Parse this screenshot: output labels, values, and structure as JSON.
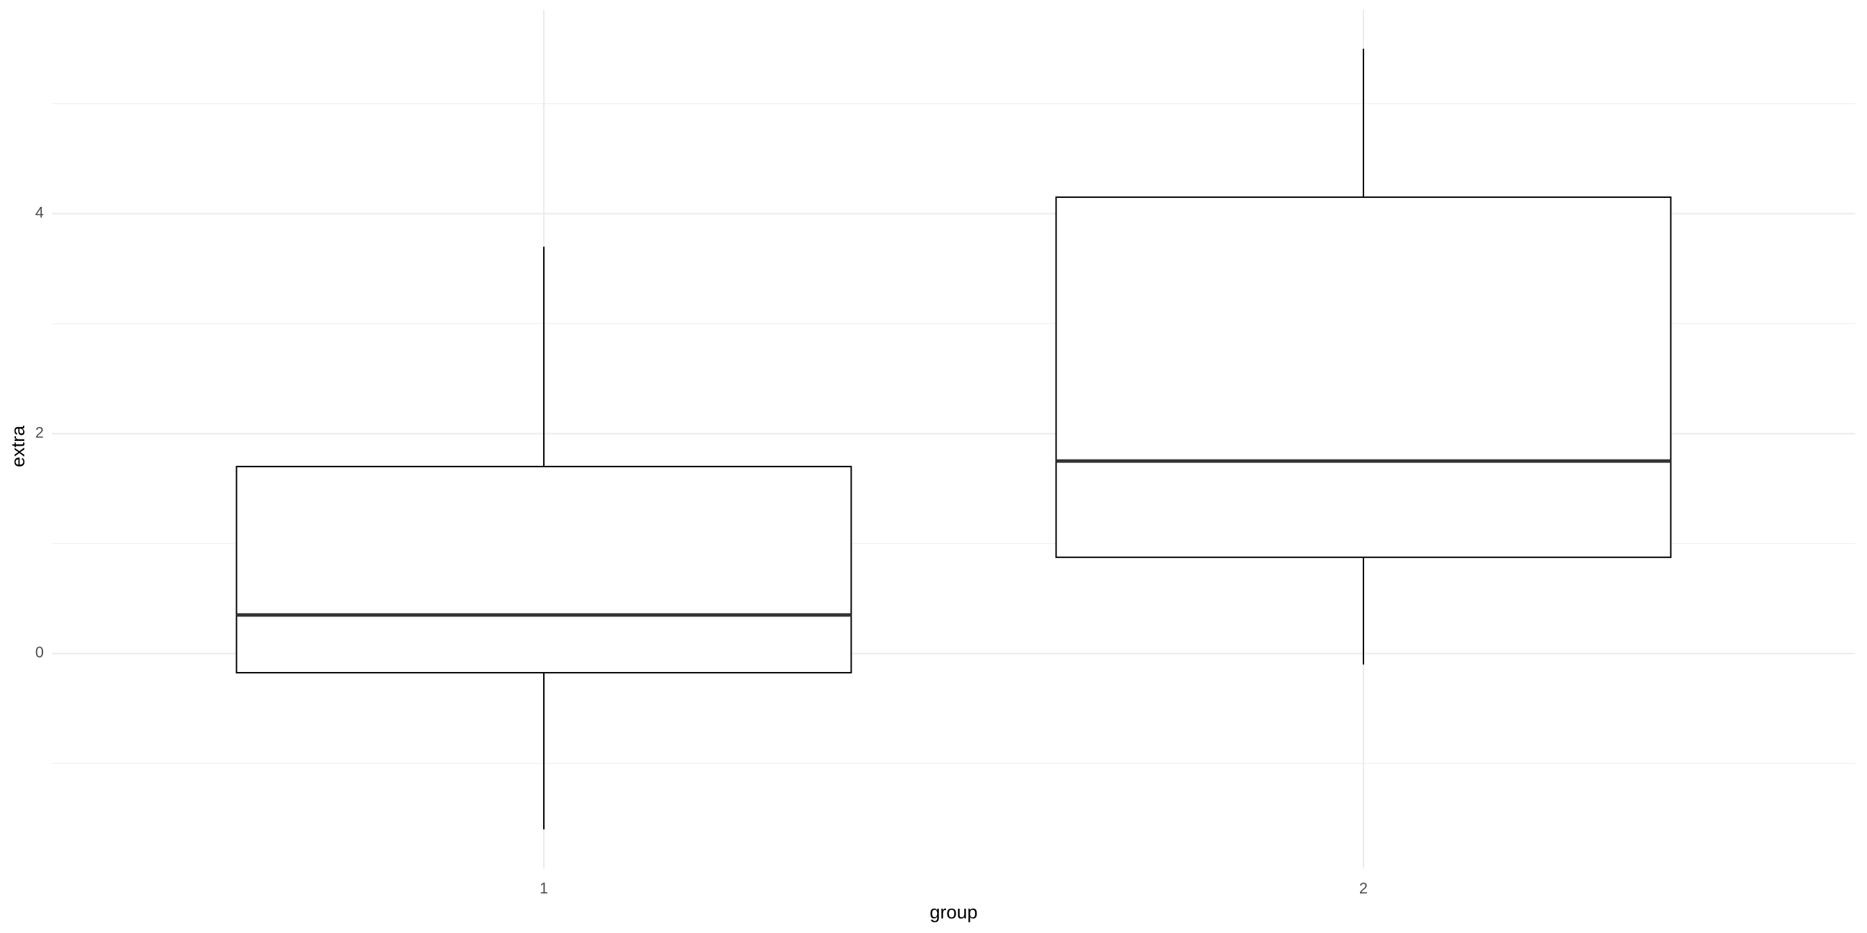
{
  "chart_data": {
    "type": "boxplot",
    "x_label": "group",
    "y_label": "extra",
    "categories": [
      "1",
      "2"
    ],
    "boxes": [
      {
        "min": -1.6,
        "q1": -0.175,
        "median": 0.35,
        "q3": 1.7,
        "max": 3.7
      },
      {
        "min": -0.1,
        "q1": 0.875,
        "median": 1.75,
        "q3": 4.15,
        "max": 5.5
      }
    ],
    "ylim": [
      -1.955,
      5.855
    ],
    "yticks": [
      0,
      2,
      4
    ],
    "minor_yticks": [
      -1,
      1,
      3,
      5
    ],
    "grid": true,
    "line_color": "#000000",
    "median_color": "#333333",
    "fill": "#ffffff"
  }
}
